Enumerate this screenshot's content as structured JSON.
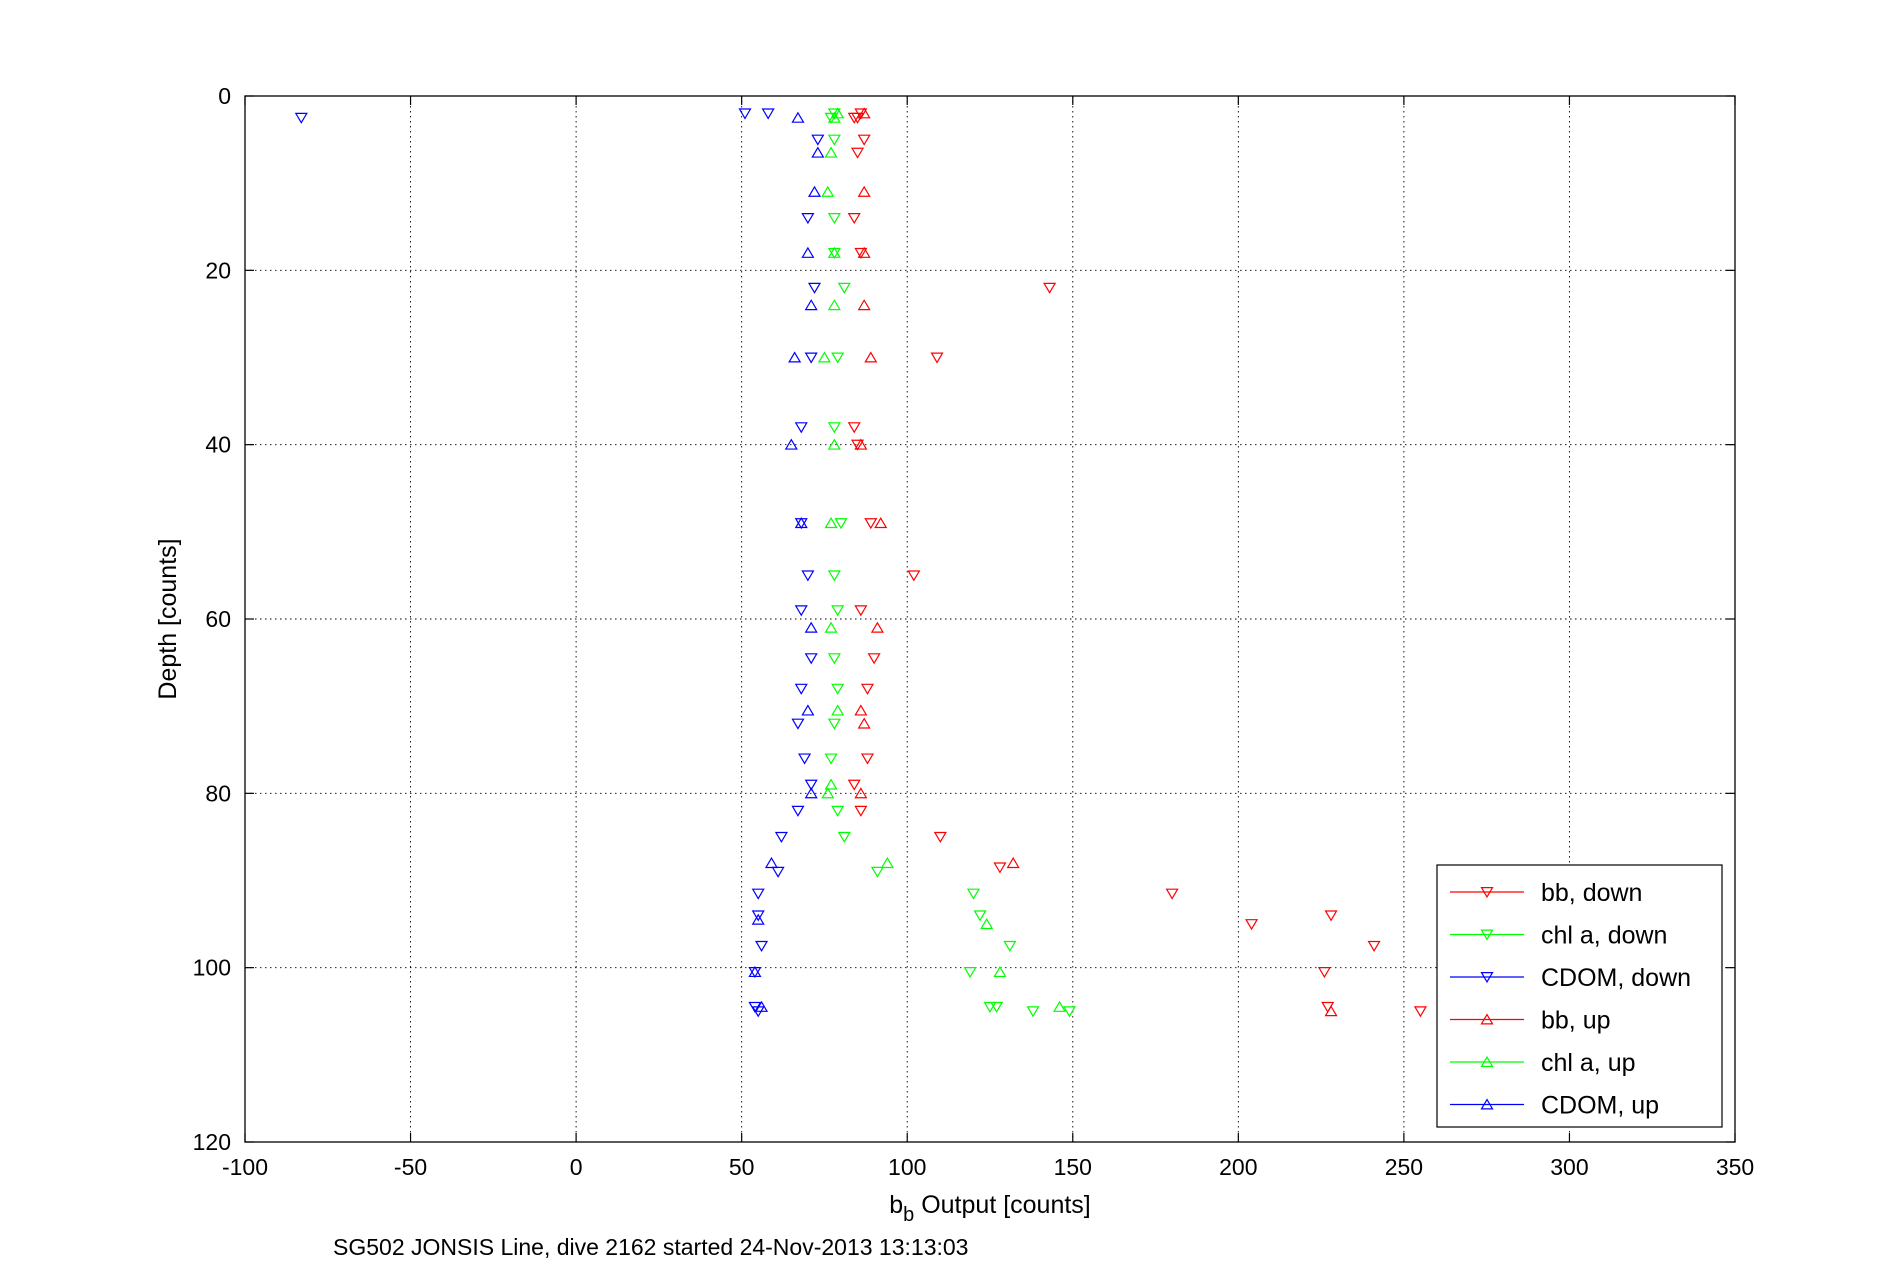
{
  "chart_data": {
    "type": "scatter",
    "xlabel_main": "b",
    "xlabel_sub": "b",
    "xlabel_rest": " Output [counts]",
    "ylabel": "Depth [counts]",
    "caption": "SG502 JONSIS Line, dive 2162 started 24-Nov-2013 13:13:03",
    "xlim": [
      -100,
      350
    ],
    "ylim": [
      0,
      120
    ],
    "y_reversed": true,
    "grid": true,
    "legend_position": "bottom-right",
    "xticks": [
      -100,
      -50,
      0,
      50,
      100,
      150,
      200,
      250,
      300,
      350
    ],
    "yticks": [
      0,
      20,
      40,
      60,
      80,
      100,
      120
    ],
    "series": [
      {
        "name": "bb, down",
        "color": "#ff0000",
        "marker": "triangle-down",
        "points": [
          [
            86,
            2
          ],
          [
            85,
            2.5
          ],
          [
            84,
            2.5
          ],
          [
            87,
            5
          ],
          [
            85,
            6.5
          ],
          [
            84,
            14
          ],
          [
            86,
            18
          ],
          [
            143,
            22
          ],
          [
            109,
            30
          ],
          [
            84,
            38
          ],
          [
            85,
            40
          ],
          [
            89,
            49
          ],
          [
            102,
            55
          ],
          [
            86,
            59
          ],
          [
            90,
            64.5
          ],
          [
            88,
            68
          ],
          [
            88,
            76
          ],
          [
            84,
            79
          ],
          [
            86,
            82
          ],
          [
            110,
            85
          ],
          [
            128,
            88.5
          ],
          [
            180,
            91.5
          ],
          [
            228,
            94
          ],
          [
            204,
            95
          ],
          [
            241,
            97.5
          ],
          [
            226,
            100.5
          ],
          [
            227,
            104.5
          ],
          [
            255,
            105
          ]
        ]
      },
      {
        "name": "chl a, down",
        "color": "#00ff00",
        "marker": "triangle-down",
        "points": [
          [
            78,
            2
          ],
          [
            77,
            2.5
          ],
          [
            78,
            5
          ],
          [
            78,
            14
          ],
          [
            78,
            18
          ],
          [
            81,
            22
          ],
          [
            79,
            30
          ],
          [
            78,
            38
          ],
          [
            80,
            49
          ],
          [
            78,
            55
          ],
          [
            79,
            59
          ],
          [
            78,
            64.5
          ],
          [
            79,
            68
          ],
          [
            78,
            72
          ],
          [
            77,
            76
          ],
          [
            79,
            82
          ],
          [
            81,
            85
          ],
          [
            91,
            89
          ],
          [
            120,
            91.5
          ],
          [
            122,
            94
          ],
          [
            131,
            97.5
          ],
          [
            119,
            100.5
          ],
          [
            125,
            104.5
          ],
          [
            127,
            104.5
          ],
          [
            138,
            105
          ],
          [
            149,
            105
          ]
        ]
      },
      {
        "name": "CDOM, down",
        "color": "#0000ff",
        "marker": "triangle-down",
        "points": [
          [
            -83,
            2.5
          ],
          [
            51,
            2
          ],
          [
            58,
            2
          ],
          [
            73,
            5
          ],
          [
            70,
            14
          ],
          [
            72,
            22
          ],
          [
            71,
            30
          ],
          [
            68,
            38
          ],
          [
            68,
            49
          ],
          [
            70,
            55
          ],
          [
            68,
            59
          ],
          [
            71,
            64.5
          ],
          [
            68,
            68
          ],
          [
            67,
            72
          ],
          [
            69,
            76
          ],
          [
            71,
            79
          ],
          [
            67,
            82
          ],
          [
            62,
            85
          ],
          [
            61,
            89
          ],
          [
            55,
            91.5
          ],
          [
            55,
            94
          ],
          [
            56,
            97.5
          ],
          [
            54,
            100.5
          ],
          [
            54,
            104.5
          ],
          [
            55,
            105
          ]
        ]
      },
      {
        "name": "bb, up",
        "color": "#ff0000",
        "marker": "triangle-up",
        "points": [
          [
            87,
            2
          ],
          [
            87,
            11
          ],
          [
            87,
            18
          ],
          [
            87,
            24
          ],
          [
            89,
            30
          ],
          [
            86,
            40
          ],
          [
            92,
            49
          ],
          [
            91,
            61
          ],
          [
            86,
            70.5
          ],
          [
            87,
            72
          ],
          [
            86,
            80
          ],
          [
            132,
            88
          ],
          [
            228,
            105
          ]
        ]
      },
      {
        "name": "chl a, up",
        "color": "#00ff00",
        "marker": "triangle-up",
        "points": [
          [
            79,
            2
          ],
          [
            78,
            2.5
          ],
          [
            77,
            6.5
          ],
          [
            76,
            11
          ],
          [
            78,
            18
          ],
          [
            78,
            24
          ],
          [
            75,
            30
          ],
          [
            78,
            40
          ],
          [
            77,
            49
          ],
          [
            77,
            61
          ],
          [
            79,
            70.5
          ],
          [
            77,
            79
          ],
          [
            76,
            80
          ],
          [
            94,
            88
          ],
          [
            124,
            95
          ],
          [
            128,
            100.5
          ],
          [
            146,
            104.5
          ]
        ]
      },
      {
        "name": "CDOM, up",
        "color": "#0000ff",
        "marker": "triangle-up",
        "points": [
          [
            67,
            2.5
          ],
          [
            73,
            6.5
          ],
          [
            72,
            11
          ],
          [
            70,
            18
          ],
          [
            71,
            24
          ],
          [
            66,
            30
          ],
          [
            65,
            40
          ],
          [
            68,
            49
          ],
          [
            71,
            61
          ],
          [
            70,
            70.5
          ],
          [
            71,
            80
          ],
          [
            59,
            88
          ],
          [
            55,
            94.5
          ],
          [
            54,
            100.5
          ],
          [
            56,
            104.5
          ]
        ]
      }
    ]
  }
}
